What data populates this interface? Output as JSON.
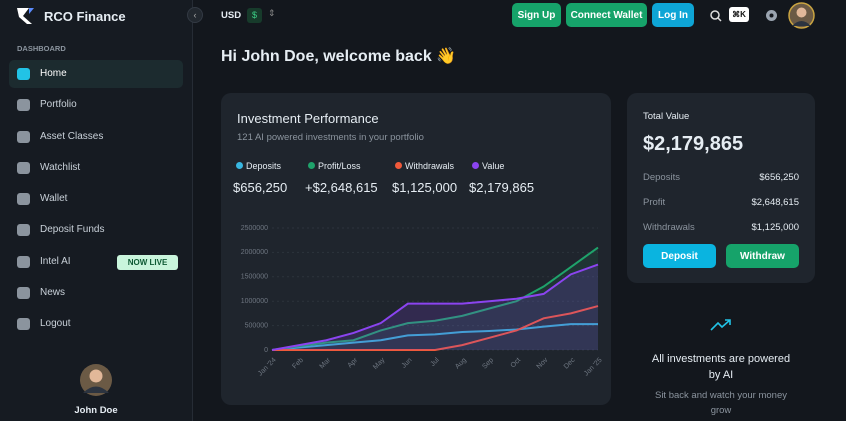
{
  "app": {
    "brand": "RCO Finance",
    "currency": "USD",
    "currency_symbol": "$",
    "buttons": [
      "Sign Up",
      "Connect Wallet",
      "Log In"
    ],
    "shortcut": "⌘K"
  },
  "sidebar": {
    "section": "DASHBOARD",
    "items": [
      "Home",
      "Portfolio",
      "Asset Classes",
      "Watchlist",
      "Wallet",
      "Deposit Funds",
      "Intel AI",
      "News",
      "Logout"
    ],
    "badge": "NOW LIVE",
    "user": "John Doe"
  },
  "welcome": "Hi John Doe, welcome back 👋",
  "performance": {
    "totals": [
      "$656,250",
      "+$2,648,615",
      "$1,125,000",
      "$2,179,865"
    ]
  },
  "chart_data": {
    "type": "line",
    "title": "Investment Performance",
    "subtitle": "121 AI powered investments in your portfolio",
    "categories": [
      "Jan '24",
      "Feb",
      "Mar",
      "Apr",
      "May",
      "Jun",
      "Jul",
      "Aug",
      "Sep",
      "Oct",
      "Nov",
      "Dec",
      "Jan '25"
    ],
    "series": [
      {
        "name": "Deposits",
        "color": "#38b6e0",
        "values": [
          0,
          50000,
          100000,
          150000,
          200000,
          300000,
          320000,
          370000,
          390000,
          420000,
          480000,
          530000,
          530000
        ]
      },
      {
        "name": "Profit/Loss",
        "color": "#1fa36b",
        "values": [
          0,
          80000,
          150000,
          200000,
          400000,
          550000,
          600000,
          700000,
          850000,
          1000000,
          1300000,
          1700000,
          2100000
        ]
      },
      {
        "name": "Withdrawals",
        "color": "#f0593a",
        "values": [
          0,
          0,
          0,
          0,
          0,
          0,
          0,
          100000,
          250000,
          400000,
          650000,
          750000,
          900000
        ]
      },
      {
        "name": "Value",
        "color": "#8b44f0",
        "values": [
          0,
          100000,
          200000,
          350000,
          550000,
          950000,
          950000,
          950000,
          1000000,
          1050000,
          1150000,
          1550000,
          1750000
        ]
      }
    ],
    "ylim": [
      0,
      2500000
    ],
    "yticks": [
      0,
      500000,
      1000000,
      1500000,
      2000000,
      2500000
    ],
    "grid": true
  },
  "total": {
    "title": "Total Value",
    "amount": "$2,179,865",
    "rows": [
      [
        "Deposits",
        "$656,250"
      ],
      [
        "Profit",
        "$2,648,615"
      ],
      [
        "Withdrawals",
        "$1,125,000"
      ]
    ],
    "buttons": [
      "Deposit",
      "Withdraw"
    ]
  },
  "info": {
    "title": "All investments are powered by AI",
    "text": "Sit back and watch your money grow"
  }
}
